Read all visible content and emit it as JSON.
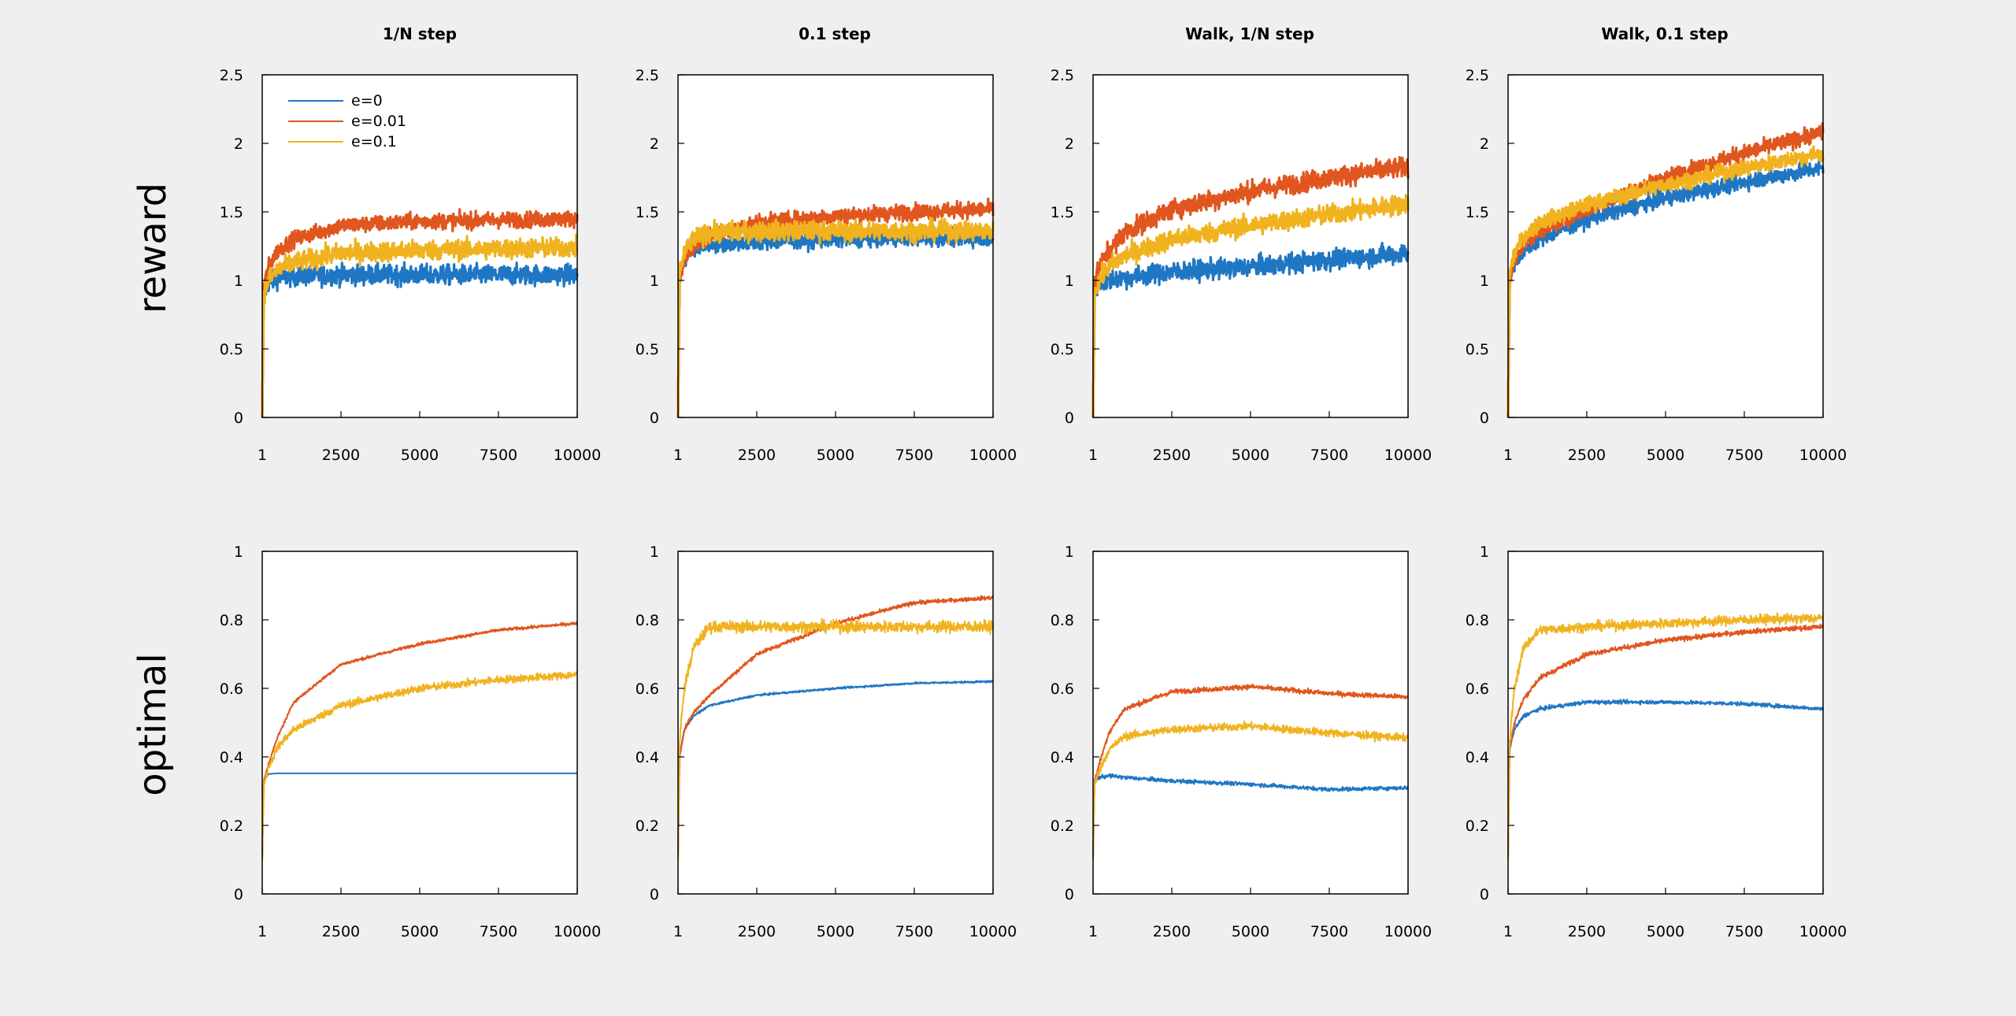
{
  "colors": {
    "e0": "#1f77c4",
    "e001": "#e0561e",
    "e01": "#f0b21e",
    "background": "#efefef"
  },
  "columns": [
    "1/N step",
    "0.1 step",
    "Walk, 1/N step",
    "Walk, 0.1 step"
  ],
  "rows": [
    "reward",
    "optimal"
  ],
  "legend": {
    "placement": "top-left of first panel",
    "entries": [
      {
        "label": "e=0",
        "color": "#1f77c4"
      },
      {
        "label": "e=0.01",
        "color": "#e0561e"
      },
      {
        "label": "e=0.1",
        "color": "#f0b21e"
      }
    ]
  },
  "chart_data": [
    {
      "type": "line",
      "title": "1/N step",
      "ylabel": "reward",
      "xlim": [
        1,
        10000
      ],
      "ylim": [
        0,
        2.5
      ],
      "xticks": [
        "1",
        "2500",
        "5000",
        "7500",
        "10000"
      ],
      "yticks": [
        "0",
        "0.5",
        "1",
        "1.5",
        "2",
        "2.5"
      ],
      "grid": false,
      "series": [
        {
          "name": "e=0",
          "noise": 0.05,
          "x": [
            1,
            50,
            200,
            500,
            1000,
            2500,
            5000,
            7500,
            10000
          ],
          "values": [
            0,
            0.9,
            0.98,
            1.02,
            1.03,
            1.04,
            1.04,
            1.04,
            1.04
          ]
        },
        {
          "name": "e=0.01",
          "noise": 0.04,
          "x": [
            1,
            50,
            200,
            500,
            1000,
            2500,
            5000,
            7500,
            10000
          ],
          "values": [
            0,
            0.95,
            1.1,
            1.22,
            1.3,
            1.4,
            1.43,
            1.44,
            1.45
          ]
        },
        {
          "name": "e=0.1",
          "noise": 0.05,
          "x": [
            1,
            50,
            200,
            500,
            1000,
            2500,
            5000,
            7500,
            10000
          ],
          "values": [
            0,
            0.9,
            1.0,
            1.08,
            1.13,
            1.2,
            1.22,
            1.23,
            1.24
          ]
        }
      ]
    },
    {
      "type": "line",
      "title": "0.1 step",
      "ylabel": "",
      "xlim": [
        1,
        10000
      ],
      "ylim": [
        0,
        2.5
      ],
      "xticks": [
        "1",
        "2500",
        "5000",
        "7500",
        "10000"
      ],
      "yticks": [
        "0",
        "0.5",
        "1",
        "1.5",
        "2",
        "2.5"
      ],
      "grid": false,
      "series": [
        {
          "name": "e=0",
          "noise": 0.04,
          "x": [
            1,
            50,
            200,
            500,
            1000,
            2500,
            5000,
            7500,
            10000
          ],
          "values": [
            0,
            1.0,
            1.15,
            1.22,
            1.26,
            1.28,
            1.3,
            1.31,
            1.31
          ]
        },
        {
          "name": "e=0.01",
          "noise": 0.04,
          "x": [
            1,
            50,
            200,
            500,
            1000,
            2500,
            5000,
            7500,
            10000
          ],
          "values": [
            0,
            1.0,
            1.15,
            1.25,
            1.32,
            1.42,
            1.47,
            1.5,
            1.52
          ]
        },
        {
          "name": "e=0.1",
          "noise": 0.05,
          "x": [
            1,
            50,
            200,
            500,
            1000,
            2500,
            5000,
            7500,
            10000
          ],
          "values": [
            0,
            1.05,
            1.2,
            1.3,
            1.35,
            1.36,
            1.36,
            1.36,
            1.36
          ]
        }
      ]
    },
    {
      "type": "line",
      "title": "Walk, 1/N step",
      "ylabel": "",
      "xlim": [
        1,
        10000
      ],
      "ylim": [
        0,
        2.5
      ],
      "xticks": [
        "1",
        "2500",
        "5000",
        "7500",
        "10000"
      ],
      "yticks": [
        "0",
        "0.5",
        "1",
        "1.5",
        "2",
        "2.5"
      ],
      "grid": false,
      "series": [
        {
          "name": "e=0",
          "noise": 0.05,
          "x": [
            1,
            50,
            200,
            500,
            1000,
            2500,
            5000,
            7500,
            10000
          ],
          "values": [
            0,
            0.92,
            0.98,
            1.0,
            1.02,
            1.06,
            1.1,
            1.15,
            1.2
          ]
        },
        {
          "name": "e=0.01",
          "noise": 0.05,
          "x": [
            1,
            50,
            200,
            500,
            1000,
            2500,
            5000,
            7500,
            10000
          ],
          "values": [
            0,
            1.0,
            1.1,
            1.22,
            1.35,
            1.52,
            1.65,
            1.75,
            1.83
          ]
        },
        {
          "name": "e=0.1",
          "noise": 0.05,
          "x": [
            1,
            50,
            200,
            500,
            1000,
            2500,
            5000,
            7500,
            10000
          ],
          "values": [
            0,
            0.92,
            1.0,
            1.1,
            1.18,
            1.3,
            1.4,
            1.48,
            1.56
          ]
        }
      ]
    },
    {
      "type": "line",
      "title": "Walk, 0.1 step",
      "ylabel": "",
      "xlim": [
        1,
        10000
      ],
      "ylim": [
        0,
        2.5
      ],
      "xticks": [
        "1",
        "2500",
        "5000",
        "7500",
        "10000"
      ],
      "yticks": [
        "0",
        "0.5",
        "1",
        "1.5",
        "2",
        "2.5"
      ],
      "grid": false,
      "series": [
        {
          "name": "e=0",
          "noise": 0.04,
          "x": [
            1,
            50,
            200,
            500,
            1000,
            2500,
            5000,
            7500,
            10000
          ],
          "values": [
            0,
            1.0,
            1.12,
            1.22,
            1.3,
            1.45,
            1.6,
            1.72,
            1.82
          ]
        },
        {
          "name": "e=0.01",
          "noise": 0.04,
          "x": [
            1,
            50,
            200,
            500,
            1000,
            2500,
            5000,
            7500,
            10000
          ],
          "values": [
            0,
            1.0,
            1.15,
            1.27,
            1.36,
            1.52,
            1.75,
            1.93,
            2.08
          ]
        },
        {
          "name": "e=0.1",
          "noise": 0.04,
          "x": [
            1,
            50,
            200,
            500,
            1000,
            2500,
            5000,
            7500,
            10000
          ],
          "values": [
            0,
            1.05,
            1.2,
            1.32,
            1.42,
            1.55,
            1.7,
            1.82,
            1.93
          ]
        }
      ]
    },
    {
      "type": "line",
      "title": "",
      "ylabel": "optimal",
      "xlim": [
        1,
        10000
      ],
      "ylim": [
        0,
        1
      ],
      "xticks": [
        "1",
        "2500",
        "5000",
        "7500",
        "10000"
      ],
      "yticks": [
        "0",
        "0.2",
        "0.4",
        "0.6",
        "0.8",
        "1"
      ],
      "grid": false,
      "series": [
        {
          "name": "e=0",
          "noise": 0.0,
          "x": [
            1,
            50,
            200,
            500,
            1000,
            2500,
            5000,
            7500,
            10000
          ],
          "values": [
            0.1,
            0.33,
            0.35,
            0.352,
            0.352,
            0.352,
            0.352,
            0.352,
            0.352
          ]
        },
        {
          "name": "e=0.01",
          "noise": 0.003,
          "x": [
            1,
            50,
            200,
            500,
            1000,
            2500,
            5000,
            7500,
            10000
          ],
          "values": [
            0.1,
            0.33,
            0.38,
            0.46,
            0.56,
            0.67,
            0.73,
            0.77,
            0.79
          ]
        },
        {
          "name": "e=0.1",
          "noise": 0.008,
          "x": [
            1,
            50,
            200,
            500,
            1000,
            2500,
            5000,
            7500,
            10000
          ],
          "values": [
            0.1,
            0.32,
            0.37,
            0.43,
            0.48,
            0.55,
            0.6,
            0.625,
            0.64
          ]
        }
      ]
    },
    {
      "type": "line",
      "title": "",
      "ylabel": "",
      "xlim": [
        1,
        10000
      ],
      "ylim": [
        0,
        1
      ],
      "xticks": [
        "1",
        "2500",
        "5000",
        "7500",
        "10000"
      ],
      "yticks": [
        "0",
        "0.2",
        "0.4",
        "0.6",
        "0.8",
        "1"
      ],
      "grid": false,
      "series": [
        {
          "name": "e=0",
          "noise": 0.002,
          "x": [
            1,
            50,
            200,
            500,
            1000,
            2500,
            5000,
            7500,
            10000
          ],
          "values": [
            0.1,
            0.4,
            0.48,
            0.52,
            0.55,
            0.58,
            0.6,
            0.615,
            0.62
          ]
        },
        {
          "name": "e=0.01",
          "noise": 0.004,
          "x": [
            1,
            50,
            200,
            500,
            1000,
            2500,
            5000,
            7500,
            10000
          ],
          "values": [
            0.1,
            0.4,
            0.48,
            0.53,
            0.58,
            0.7,
            0.79,
            0.85,
            0.865
          ]
        },
        {
          "name": "e=0.1",
          "noise": 0.012,
          "x": [
            1,
            50,
            200,
            500,
            1000,
            2500,
            5000,
            7500,
            10000
          ],
          "values": [
            0.1,
            0.45,
            0.6,
            0.72,
            0.78,
            0.78,
            0.78,
            0.78,
            0.78
          ]
        }
      ]
    },
    {
      "type": "line",
      "title": "",
      "ylabel": "",
      "xlim": [
        1,
        10000
      ],
      "ylim": [
        0,
        1
      ],
      "xticks": [
        "1",
        "2500",
        "5000",
        "7500",
        "10000"
      ],
      "yticks": [
        "0",
        "0.2",
        "0.4",
        "0.6",
        "0.8",
        "1"
      ],
      "grid": false,
      "series": [
        {
          "name": "e=0",
          "noise": 0.004,
          "x": [
            1,
            50,
            200,
            500,
            1000,
            2500,
            5000,
            7500,
            10000
          ],
          "values": [
            0.1,
            0.33,
            0.34,
            0.345,
            0.34,
            0.33,
            0.32,
            0.305,
            0.31
          ]
        },
        {
          "name": "e=0.01",
          "noise": 0.005,
          "x": [
            1,
            50,
            200,
            500,
            1000,
            2500,
            5000,
            7500,
            10000
          ],
          "values": [
            0.1,
            0.33,
            0.38,
            0.47,
            0.54,
            0.59,
            0.605,
            0.585,
            0.575
          ]
        },
        {
          "name": "e=0.1",
          "noise": 0.008,
          "x": [
            1,
            50,
            200,
            500,
            1000,
            2500,
            5000,
            7500,
            10000
          ],
          "values": [
            0.1,
            0.32,
            0.36,
            0.42,
            0.46,
            0.48,
            0.49,
            0.47,
            0.455
          ]
        }
      ]
    },
    {
      "type": "line",
      "title": "",
      "ylabel": "",
      "xlim": [
        1,
        10000
      ],
      "ylim": [
        0,
        1
      ],
      "xticks": [
        "1",
        "2500",
        "5000",
        "7500",
        "10000"
      ],
      "yticks": [
        "0",
        "0.2",
        "0.4",
        "0.6",
        "0.8",
        "1"
      ],
      "grid": false,
      "series": [
        {
          "name": "e=0",
          "noise": 0.004,
          "x": [
            1,
            50,
            200,
            500,
            1000,
            2500,
            5000,
            7500,
            10000
          ],
          "values": [
            0.1,
            0.42,
            0.48,
            0.52,
            0.54,
            0.56,
            0.56,
            0.555,
            0.54
          ]
        },
        {
          "name": "e=0.01",
          "noise": 0.005,
          "x": [
            1,
            50,
            200,
            500,
            1000,
            2500,
            5000,
            7500,
            10000
          ],
          "values": [
            0.1,
            0.42,
            0.5,
            0.57,
            0.63,
            0.7,
            0.74,
            0.765,
            0.78
          ]
        },
        {
          "name": "e=0.1",
          "noise": 0.01,
          "x": [
            1,
            50,
            200,
            500,
            1000,
            2500,
            5000,
            7500,
            10000
          ],
          "values": [
            0.1,
            0.45,
            0.6,
            0.72,
            0.77,
            0.78,
            0.79,
            0.8,
            0.805
          ]
        }
      ]
    }
  ]
}
